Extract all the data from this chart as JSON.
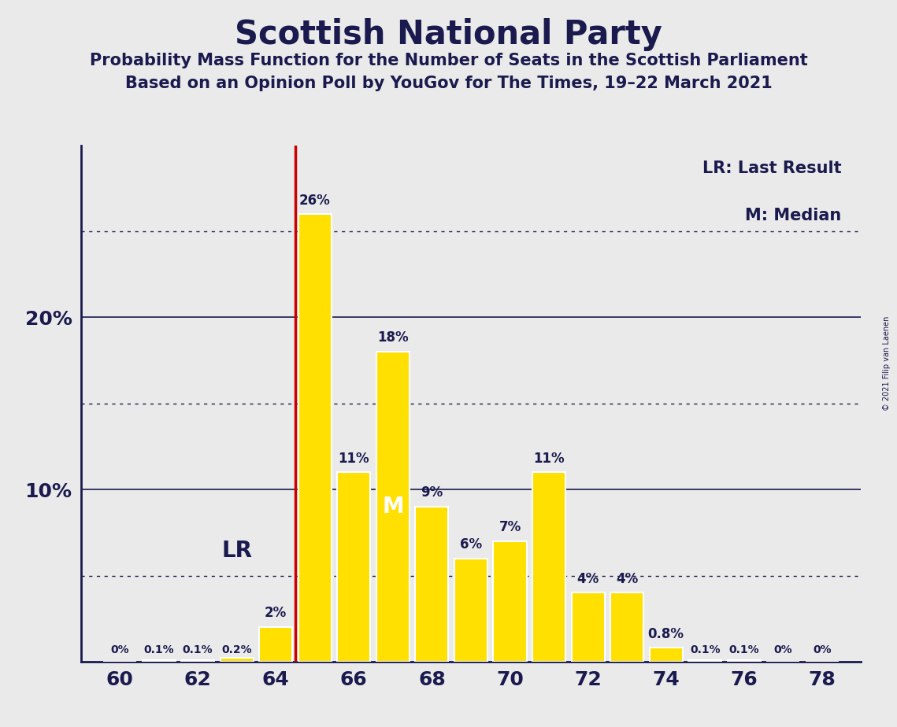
{
  "title": "Scottish National Party",
  "subtitle1": "Probability Mass Function for the Number of Seats in the Scottish Parliament",
  "subtitle2": "Based on an Opinion Poll by YouGov for The Times, 19–22 March 2021",
  "copyright": "© 2021 Filip van Laenen",
  "legend_lr": "LR: Last Result",
  "legend_m": "M: Median",
  "seats": [
    60,
    61,
    62,
    63,
    64,
    65,
    66,
    67,
    68,
    69,
    70,
    71,
    72,
    73,
    74,
    75,
    76,
    77,
    78
  ],
  "probabilities": [
    0.0,
    0.1,
    0.1,
    0.2,
    2.0,
    26.0,
    11.0,
    18.0,
    9.0,
    6.0,
    7.0,
    11.0,
    4.0,
    4.0,
    0.8,
    0.1,
    0.1,
    0.0,
    0.0
  ],
  "bar_color": "#FFE000",
  "bar_edge_color": "#FFFFFF",
  "last_result": 64,
  "median": 67,
  "lr_line_color": "#CC0000",
  "background_color": "#EAEAEA",
  "text_color": "#1A1A4E",
  "dotted_lines": [
    5.0,
    15.0,
    25.0
  ],
  "solid_lines": [
    10.0,
    20.0
  ],
  "xlim": [
    59.0,
    79.0
  ],
  "ylim": [
    0,
    30
  ],
  "xtick_positions": [
    60,
    62,
    64,
    66,
    68,
    70,
    72,
    74,
    76,
    78
  ],
  "figsize": [
    11.39,
    9.24
  ],
  "dpi": 100,
  "bar_width": 0.85
}
